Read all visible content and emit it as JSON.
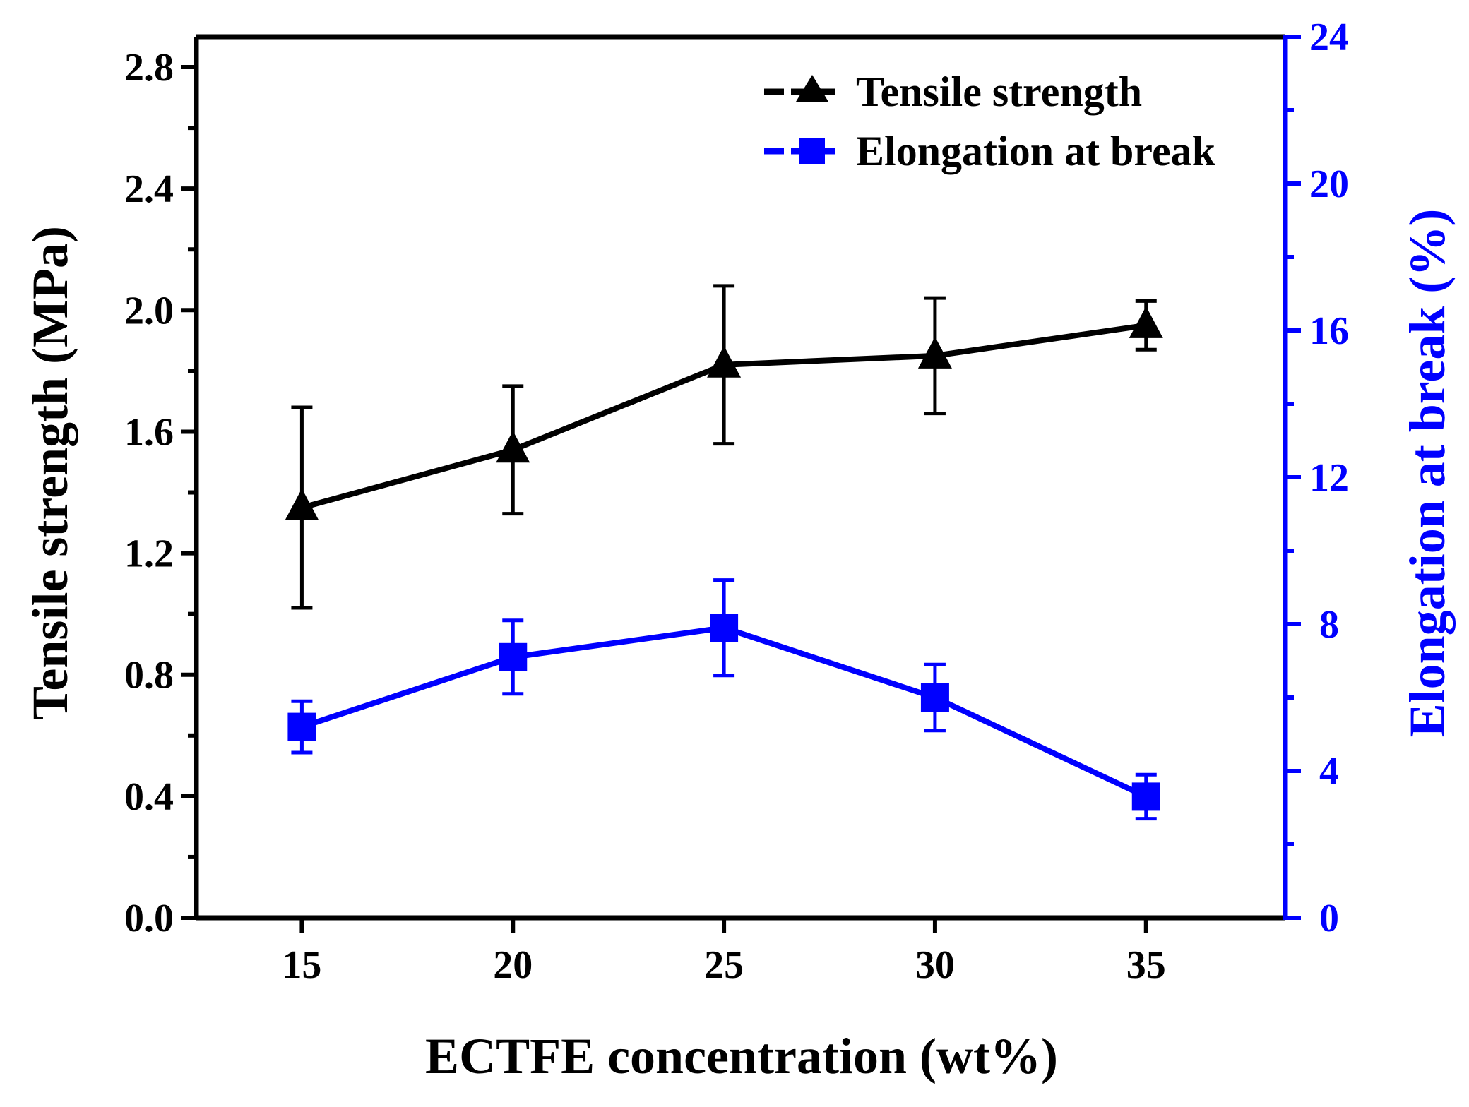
{
  "chart_data": {
    "type": "line",
    "x_categories": [
      15,
      20,
      25,
      30,
      35
    ],
    "xlabel": "ECTFE concentration (wt%)",
    "x_tick_labels": [
      "15",
      "20",
      "25",
      "30",
      "35"
    ],
    "xlim": [
      12.5,
      38.3
    ],
    "left_axis": {
      "label": "Tensile strength (MPa)",
      "ylim": [
        0,
        2.9
      ],
      "ticks": [
        "0.0",
        "0.4",
        "0.8",
        "1.2",
        "1.6",
        "2.0",
        "2.4",
        "2.8"
      ],
      "tick_values": [
        0,
        0.4,
        0.8,
        1.2,
        1.6,
        2.0,
        2.4,
        2.8
      ],
      "minor_step": 0.2,
      "color": "#000000"
    },
    "right_axis": {
      "label": "Elongation at break (%)",
      "ylim": [
        0,
        24
      ],
      "ticks": [
        "0",
        "4",
        "8",
        "12",
        "16",
        "20",
        "24"
      ],
      "tick_values": [
        0,
        4,
        8,
        12,
        16,
        20,
        24
      ],
      "minor_step": 2,
      "color": "#0000ff"
    },
    "series": [
      {
        "name": "Tensile strength",
        "axis": "left",
        "marker": "triangle",
        "color": "#000000",
        "x": [
          15,
          20,
          25,
          30,
          35
        ],
        "values": [
          1.35,
          1.54,
          1.82,
          1.85,
          1.95
        ],
        "err_low": [
          0.33,
          0.21,
          0.26,
          0.19,
          0.08
        ],
        "err_high": [
          0.33,
          0.21,
          0.26,
          0.19,
          0.08
        ]
      },
      {
        "name": "Elongation at break",
        "axis": "right",
        "marker": "square",
        "color": "#0000ff",
        "x": [
          15,
          20,
          25,
          30,
          35
        ],
        "values": [
          5.2,
          7.1,
          7.9,
          6.0,
          3.3
        ],
        "err_low": [
          0.7,
          1.0,
          1.3,
          0.9,
          0.6
        ],
        "err_high": [
          0.7,
          1.0,
          1.3,
          0.9,
          0.6
        ]
      }
    ],
    "legend": {
      "position": "top-right",
      "entries": [
        "Tensile strength",
        "Elongation at break"
      ]
    }
  }
}
